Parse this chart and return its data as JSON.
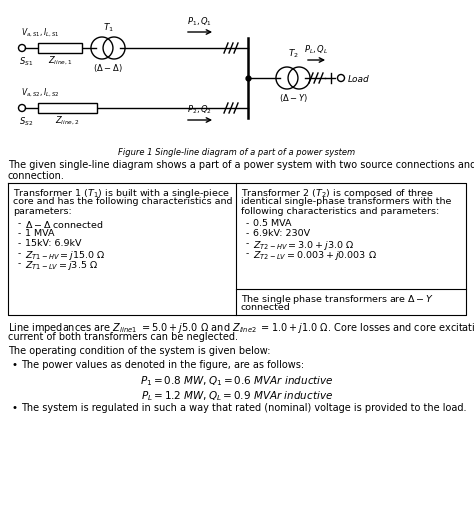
{
  "bg_color": "#ffffff",
  "fig_width": 4.74,
  "fig_height": 5.22,
  "table": {
    "left_items": [
      "$\\Delta - \\Delta$ connected",
      "1 MVA",
      "15kV: 6.9kV",
      "$Z_{T1-HV} = j15.0\\ \\Omega$",
      "$Z_{T1-LV} = j3.5\\ \\Omega$"
    ],
    "right_items": [
      "0.5 MVA",
      "6.9kV: 230V",
      "$Z_{T2-HV} = 3.0 + j3.0\\ \\Omega$",
      "$Z_{T2-LV} = 0.003 + j0.003\\ \\Omega$"
    ]
  }
}
